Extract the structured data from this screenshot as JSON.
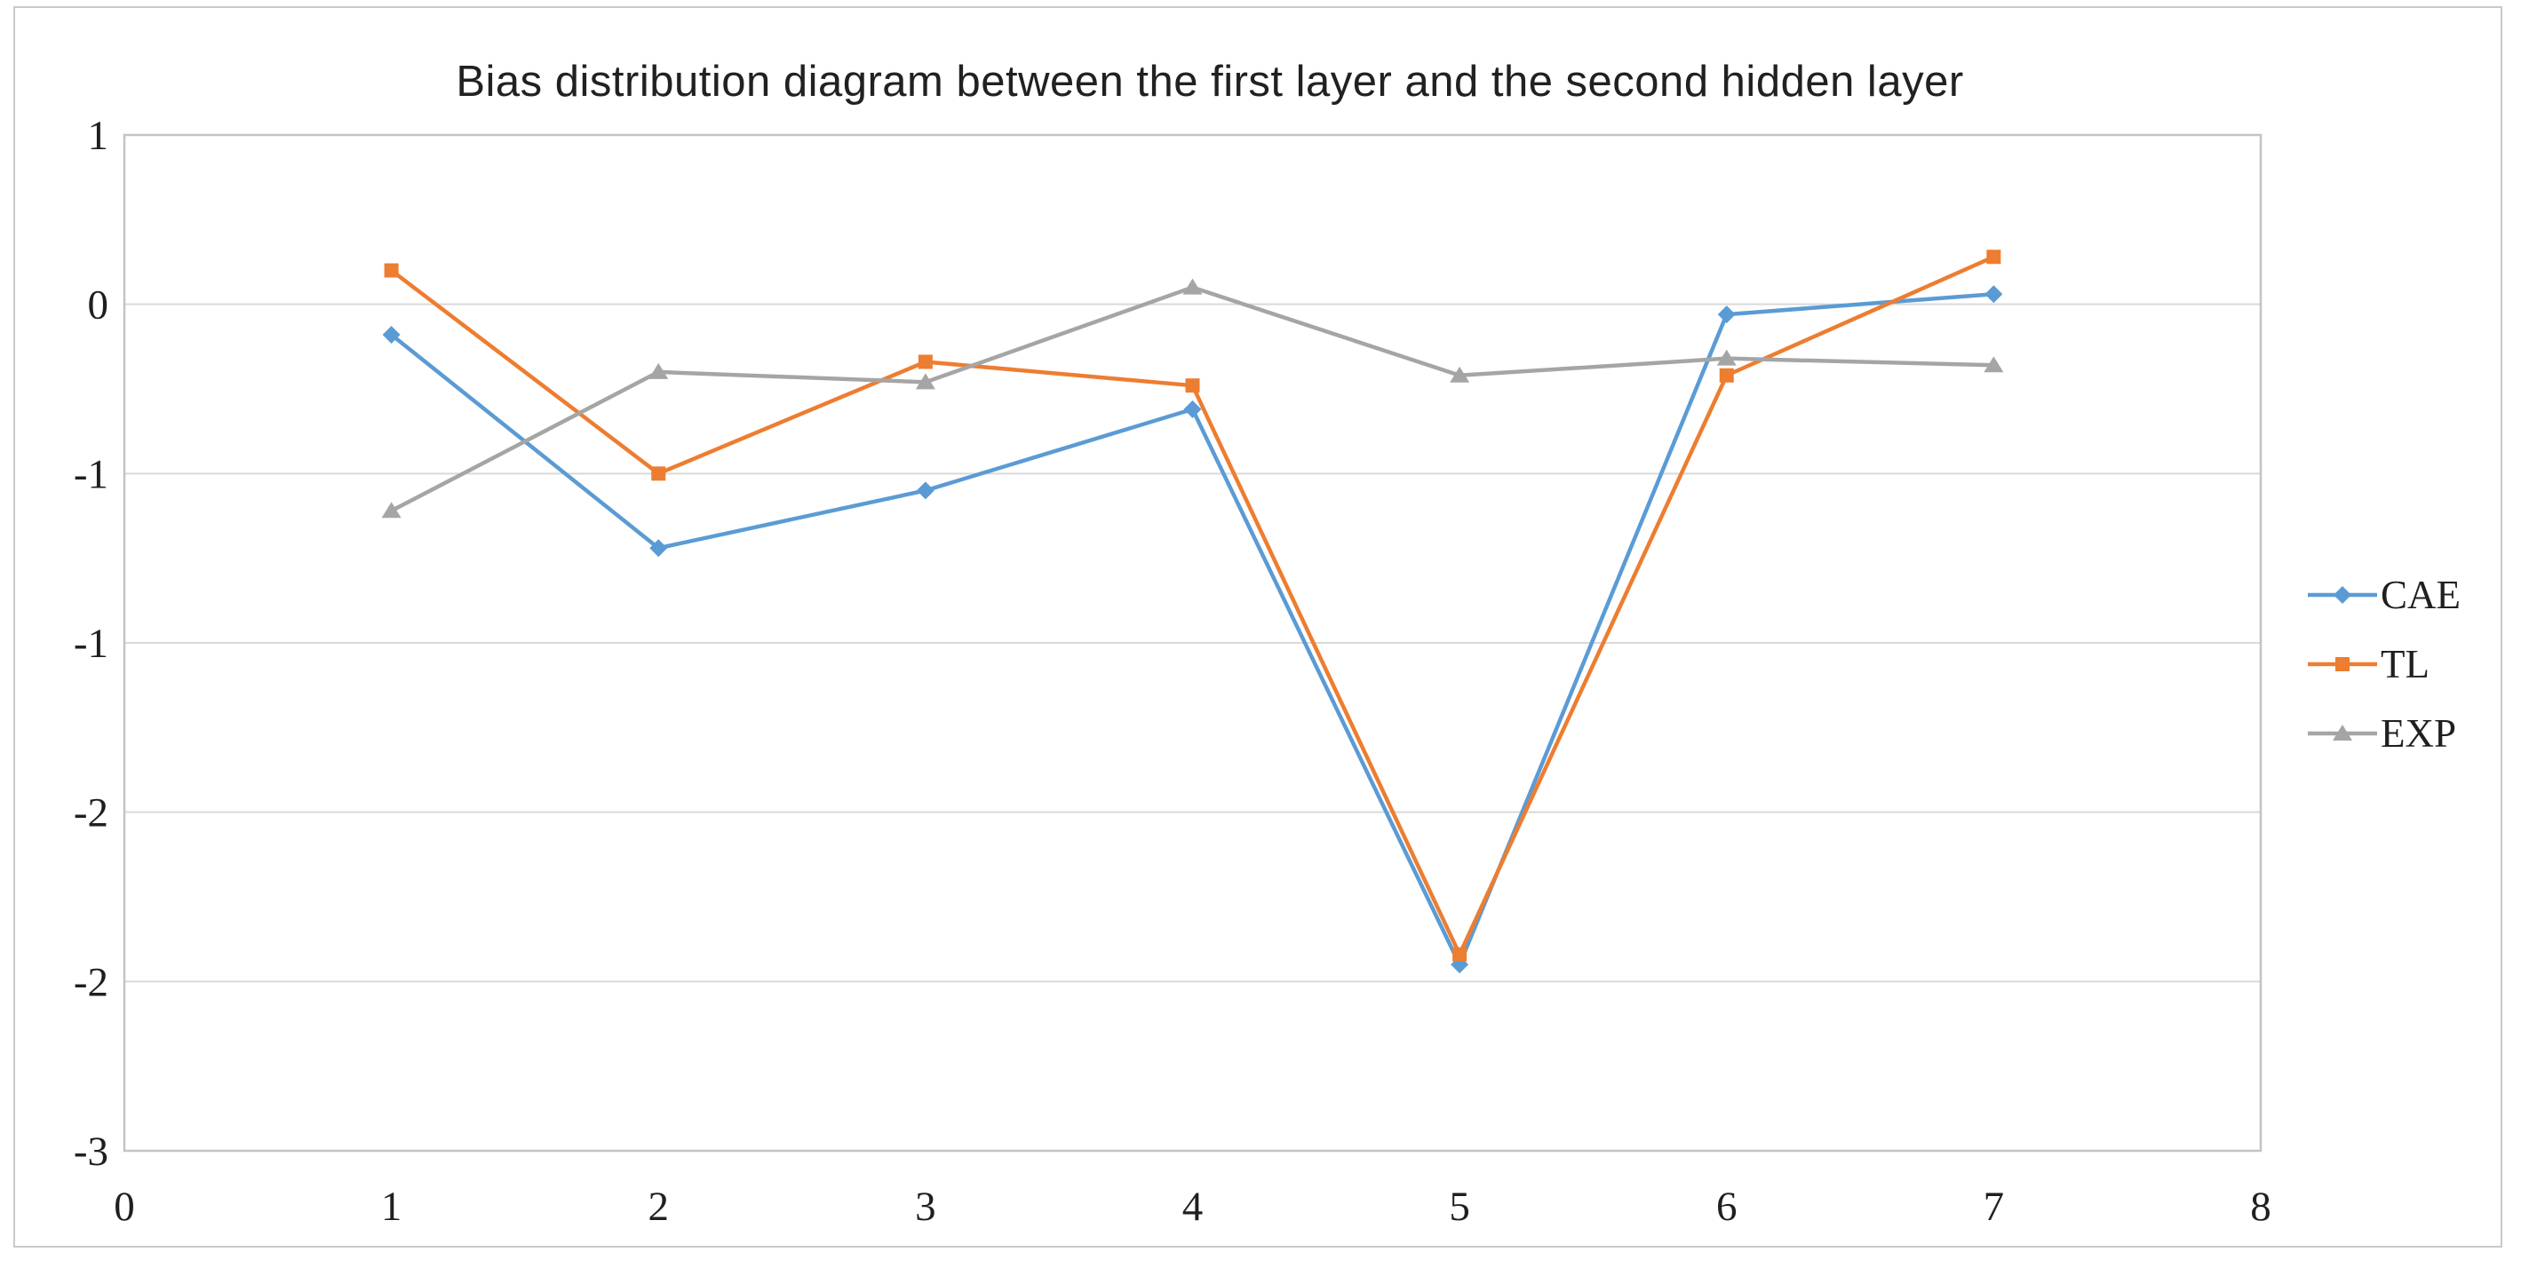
{
  "figure": {
    "background_color": "#ffffff",
    "border_color": "#c9c9c9"
  },
  "chart_data": {
    "type": "line",
    "title": "Bias distribution diagram between the first layer and the second hidden layer",
    "x": [
      1,
      2,
      3,
      4,
      5,
      6,
      7
    ],
    "series": [
      {
        "name": "CAE",
        "color": "#5b9bd5",
        "marker": "diamond",
        "values": [
          -0.09,
          -0.72,
          -0.55,
          -0.31,
          -1.95,
          -0.03,
          0.03
        ]
      },
      {
        "name": "TL",
        "color": "#ed7d31",
        "marker": "square",
        "values": [
          0.1,
          -0.5,
          -0.17,
          -0.24,
          -1.92,
          -0.21,
          0.14
        ]
      },
      {
        "name": "EXP",
        "color": "#a5a5a5",
        "marker": "triangle",
        "values": [
          -0.61,
          -0.2,
          -0.23,
          0.05,
          -0.21,
          -0.16,
          -0.18
        ]
      }
    ],
    "x_axis": {
      "tick_labels": [
        "0",
        "1",
        "2",
        "3",
        "4",
        "5",
        "6",
        "7",
        "8"
      ],
      "min": 0,
      "max": 8
    },
    "y_axis": {
      "tick_labels": [
        "1",
        "0",
        "-1",
        "-1",
        "-2",
        "-2",
        "-3"
      ],
      "tick_values": [
        0.5,
        0,
        -0.5,
        -1,
        -1.5,
        -2,
        -2.5
      ],
      "min": -2.5,
      "max": 0.5
    },
    "legend": {
      "position": "right",
      "entries": [
        "CAE",
        "TL",
        "EXP"
      ]
    },
    "grid": true,
    "gridline_color": "#d9d9d9",
    "axis_box_color": "#c3c3c3",
    "line_width": 4.5
  }
}
